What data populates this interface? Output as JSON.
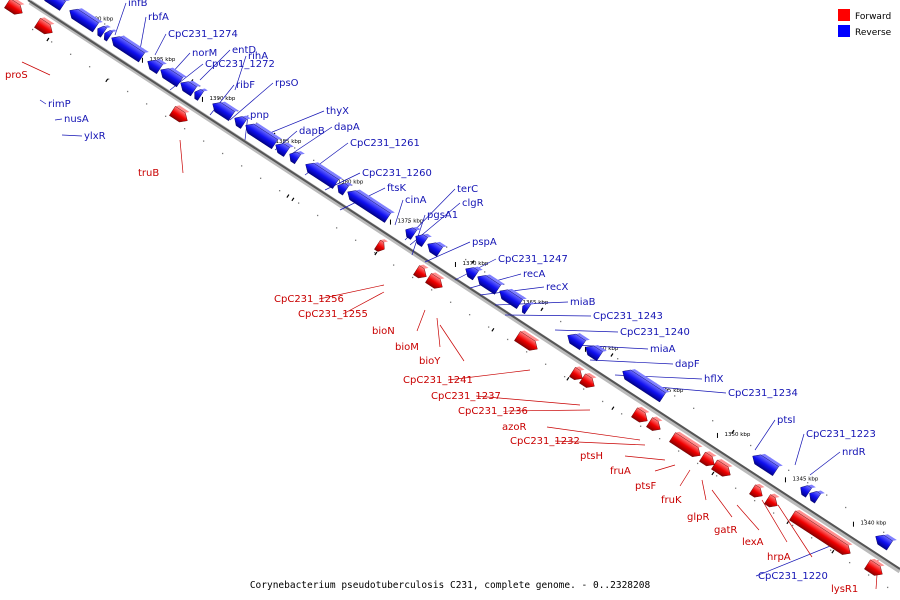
{
  "legend": [
    {
      "label": "Forward",
      "color": "#ff0000"
    },
    {
      "label": "Reverse",
      "color": "#0000ff"
    }
  ],
  "caption": "Corynebacterium pseudotuberculosis C231, complete genome. - 0..2328208",
  "scale": {
    "unit": "kbp",
    "ticks": [
      "1400 kbp",
      "1395 kbp",
      "1390 kbp",
      "1385 kbp",
      "1380 kbp",
      "1375 kbp",
      "1370 kbp",
      "1365 kbp",
      "1360 kbp",
      "1355 kbp",
      "1350 kbp",
      "1345 kbp",
      "1340 kbp"
    ]
  },
  "colors": {
    "forward": "#ff0000",
    "reverse": "#0000ff",
    "forward_label": "#c80000",
    "reverse_label": "#1414b4"
  },
  "genes_forward": [
    "proS",
    "truB",
    "CpC231_1256",
    "CpC231_1255",
    "bioN",
    "bioM",
    "bioY",
    "CpC231_1241",
    "CpC231_1237",
    "CpC231_1236",
    "azoR",
    "CpC231_1232",
    "ptsH",
    "fruA",
    "ptsF",
    "fruK",
    "glpR",
    "gatR",
    "lexA",
    "hrpA",
    "lysR1"
  ],
  "genes_reverse": [
    "infB",
    "rbfA",
    "CpC231_1274",
    "norM",
    "entD",
    "CpC231_1272",
    "rihA",
    "ribF",
    "rpsO",
    "rimP",
    "nusA",
    "ylxR",
    "pnp",
    "thyX",
    "dapB",
    "dapA",
    "CpC231_1261",
    "CpC231_1260",
    "ftsK",
    "cinA",
    "terC",
    "clgR",
    "pgsA1",
    "pspA",
    "CpC231_1247",
    "recA",
    "recX",
    "miaB",
    "CpC231_1243",
    "CpC231_1240",
    "miaA",
    "dapF",
    "hflX",
    "CpC231_1234",
    "ptsI",
    "CpC231_1223",
    "nrdR",
    "CpC231_1220"
  ]
}
